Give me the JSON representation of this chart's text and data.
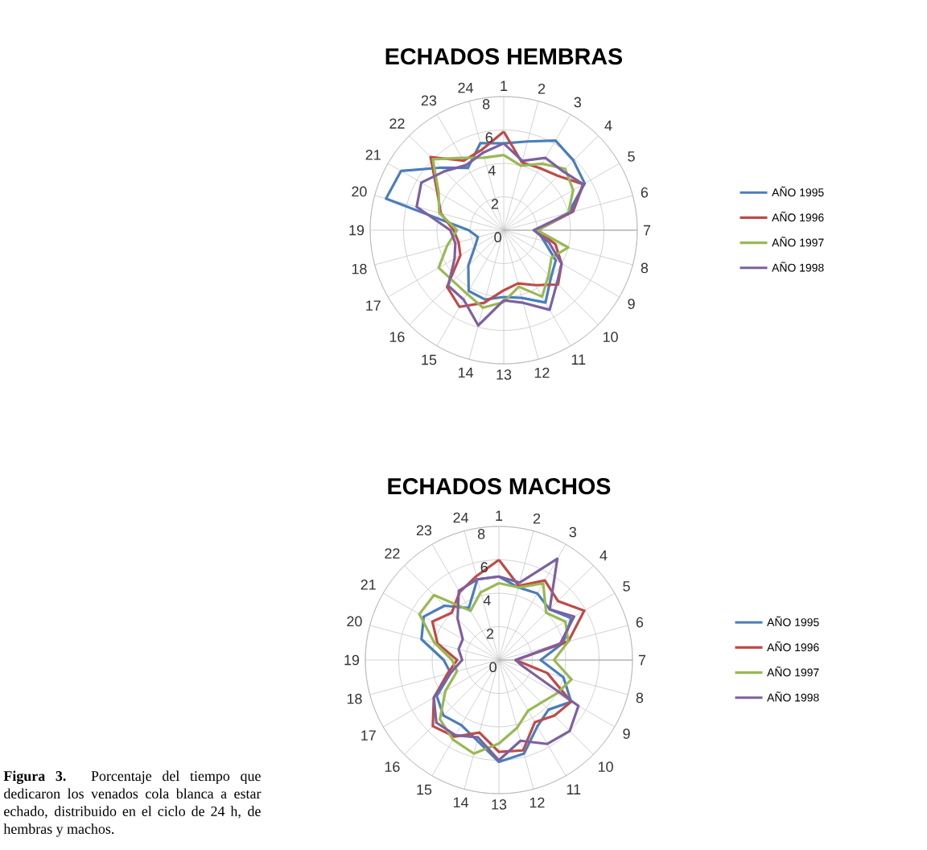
{
  "chart_data": [
    {
      "type": "radar",
      "title": "ECHADOS HEMBRAS",
      "categories": [
        "1",
        "2",
        "3",
        "4",
        "5",
        "6",
        "7",
        "8",
        "9",
        "10",
        "11",
        "12",
        "13",
        "14",
        "15",
        "16",
        "17",
        "18",
        "19",
        "20",
        "21",
        "22",
        "23",
        "24"
      ],
      "ylim": [
        0,
        8
      ],
      "yticks": [
        0,
        2,
        4,
        6,
        8
      ],
      "grid": true,
      "legend": "right",
      "series": [
        {
          "name": "AÑO 1995",
          "color": "#4a7ebb",
          "values": [
            5.2,
            5.5,
            6.2,
            5.9,
            5.6,
            4.0,
            2.0,
            2.5,
            3.6,
            4.0,
            5.0,
            4.2,
            4.0,
            4.3,
            4.2,
            3.0,
            2.0,
            1.6,
            2.1,
            7.3,
            7.1,
            5.3,
            4.3,
            5.4
          ]
        },
        {
          "name": "AÑO 1996",
          "color": "#be4b48",
          "values": [
            5.9,
            4.2,
            4.3,
            4.6,
            5.5,
            4.3,
            2.0,
            3.2,
            4.0,
            4.6,
            3.8,
            3.3,
            3.6,
            4.5,
            5.3,
            4.8,
            3.0,
            2.8,
            3.0,
            3.9,
            4.6,
            6.2,
            4.8,
            5.0
          ]
        },
        {
          "name": "AÑO 1997",
          "color": "#98b954",
          "values": [
            4.5,
            4.0,
            4.6,
            5.2,
            4.8,
            4.0,
            2.0,
            4.0,
            3.3,
            3.8,
            4.6,
            3.5,
            4.3,
            4.8,
            4.4,
            4.3,
            4.5,
            3.5,
            2.8,
            4.0,
            4.5,
            6.0,
            5.0,
            4.5
          ]
        },
        {
          "name": "AÑO 1998",
          "color": "#7d60a0",
          "values": [
            5.2,
            4.3,
            5.0,
            5.0,
            5.5,
            4.2,
            1.8,
            2.8,
            4.0,
            4.5,
            5.5,
            4.5,
            4.2,
            5.9,
            4.8,
            4.7,
            3.4,
            3.0,
            3.2,
            5.4,
            5.7,
            5.0,
            4.5,
            4.8
          ]
        }
      ]
    },
    {
      "type": "radar",
      "title": "ECHADOS MACHOS",
      "categories": [
        "1",
        "2",
        "3",
        "4",
        "5",
        "6",
        "7",
        "8",
        "9",
        "10",
        "11",
        "12",
        "13",
        "14",
        "15",
        "16",
        "17",
        "18",
        "19",
        "20",
        "21",
        "22",
        "23",
        "24"
      ],
      "ylim": [
        0,
        8
      ],
      "yticks": [
        0,
        2,
        4,
        6,
        8
      ],
      "grid": true,
      "legend": "right",
      "annotations": [
        "**Figura 3.** Porcentaje del tiempo que dedicaron los venados cola blanca  a estar echado, distribuido en el ciclo de 24 h, de hembras y machos."
      ],
      "series": [
        {
          "name": "AÑO 1995",
          "color": "#4a7ebb",
          "values": [
            5.0,
            4.5,
            4.6,
            4.3,
            5.0,
            4.0,
            2.5,
            4.0,
            5.0,
            4.2,
            4.6,
            5.8,
            6.1,
            5.0,
            4.5,
            4.7,
            4.3,
            3.0,
            3.3,
            4.8,
            5.2,
            4.6,
            3.6,
            5.0
          ]
        },
        {
          "name": "AÑO 1996",
          "color": "#be4b48",
          "values": [
            6.0,
            4.6,
            5.5,
            5.0,
            5.9,
            4.3,
            1.0,
            3.0,
            5.0,
            4.7,
            4.3,
            5.6,
            5.5,
            4.5,
            5.3,
            5.6,
            4.5,
            3.2,
            2.5,
            3.8,
            4.6,
            4.0,
            4.7,
            5.2
          ]
        },
        {
          "name": "AÑO 1997",
          "color": "#98b954",
          "values": [
            4.6,
            4.5,
            5.3,
            4.0,
            4.6,
            4.3,
            3.3,
            4.5,
            4.0,
            3.6,
            3.5,
            4.2,
            5.0,
            5.8,
            5.5,
            5.0,
            3.7,
            2.6,
            2.8,
            4.0,
            5.5,
            5.5,
            3.4,
            4.2
          ]
        },
        {
          "name": "AÑO 1998",
          "color": "#7d60a0",
          "values": [
            5.0,
            4.8,
            7.0,
            4.3,
            5.2,
            3.8,
            1.0,
            1.5,
            5.5,
            6.0,
            5.8,
            5.0,
            6.0,
            4.8,
            5.2,
            5.3,
            4.5,
            3.0,
            2.2,
            2.5,
            2.5,
            3.5,
            4.8,
            5.0
          ]
        }
      ]
    }
  ]
}
